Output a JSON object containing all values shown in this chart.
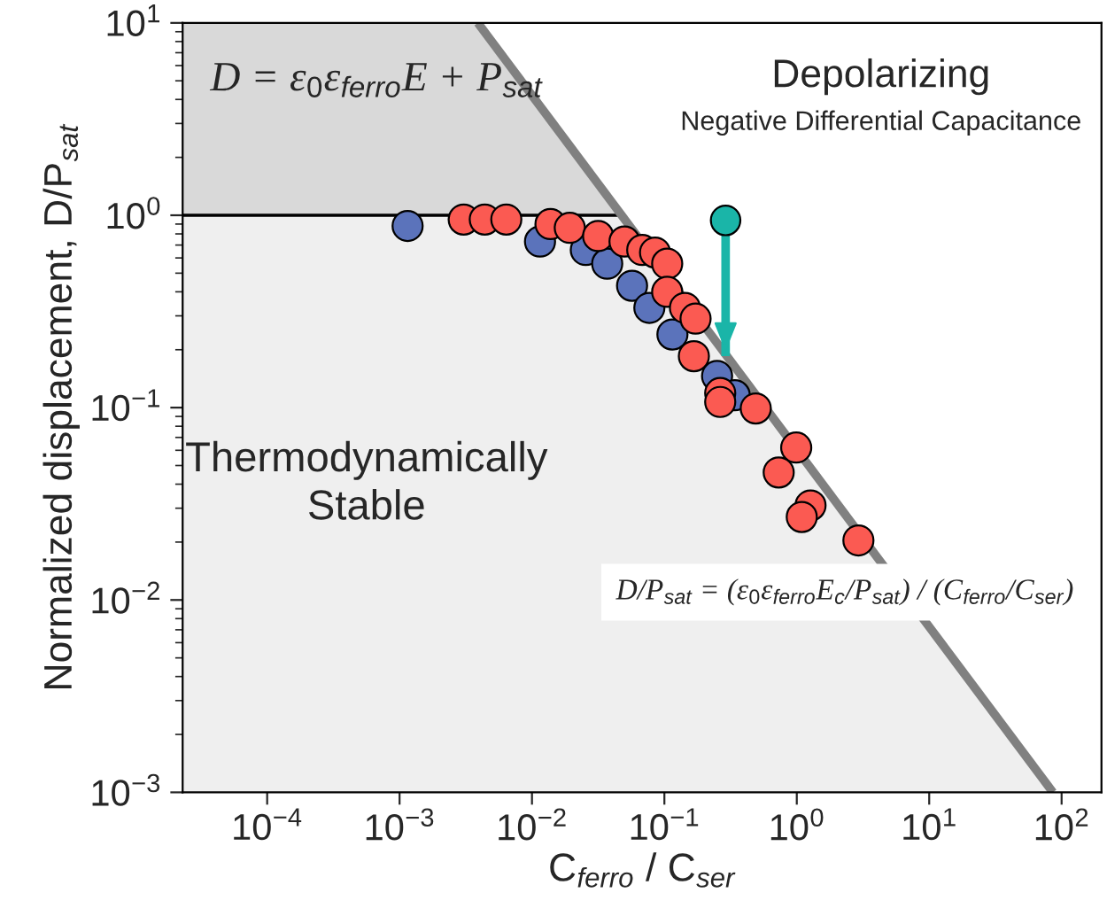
{
  "chart_data": {
    "type": "scatter",
    "xlabel": "C$_{ferro}$ / C$_{ser}$",
    "ylabel": "Normalized displacement, D/P$_{sat}$",
    "log": "xy",
    "xlim": [
      2.3e-05,
      200
    ],
    "ylim": [
      0.001,
      10
    ],
    "xticks": [
      {
        "value": 0.0001,
        "label": "10$^{−4}$"
      },
      {
        "value": 0.001,
        "label": "10$^{−3}$"
      },
      {
        "value": 0.01,
        "label": "10$^{−2}$"
      },
      {
        "value": 0.1,
        "label": "10$^{−1}$"
      },
      {
        "value": 1,
        "label": "10$^{0}$"
      },
      {
        "value": 10,
        "label": "10$^{1}$"
      },
      {
        "value": 100,
        "label": "10$^{2}$"
      }
    ],
    "yticks": [
      {
        "value": 0.001,
        "label": "10$^{−3}$"
      },
      {
        "value": 0.01,
        "label": "10$^{−2}$"
      },
      {
        "value": 0.1,
        "label": "10$^{−1}$"
      },
      {
        "value": 1,
        "label": "10$^{0}$"
      },
      {
        "value": 10,
        "label": "10$^{1}$"
      }
    ],
    "grid": false,
    "legend": false,
    "marker": "circle",
    "series": [
      {
        "type": "line",
        "marker": "none",
        "color": "#808080",
        "x": [
          0.0039,
          86
        ],
        "values": [
          10,
          0.001
        ]
      },
      {
        "color": "#5b73bb",
        "x": [
          0.00115,
          0.0115,
          0.0255,
          0.037,
          0.057,
          0.077,
          0.115,
          0.25,
          0.34
        ],
        "values": [
          0.88,
          0.73,
          0.66,
          0.56,
          0.43,
          0.33,
          0.24,
          0.146,
          0.116
        ]
      },
      {
        "color": "#fb5a52",
        "x": [
          0.00305,
          0.0044,
          0.0064,
          0.0138,
          0.0193,
          0.0316,
          0.05,
          0.068,
          0.085,
          0.105,
          0.105,
          0.143,
          0.172,
          0.167,
          0.264,
          0.264,
          0.49,
          0.99,
          0.73,
          1.27,
          1.09,
          2.92
        ],
        "values": [
          0.95,
          0.95,
          0.95,
          0.9,
          0.86,
          0.78,
          0.73,
          0.66,
          0.64,
          0.56,
          0.4,
          0.33,
          0.29,
          0.185,
          0.119,
          0.107,
          0.099,
          0.062,
          0.046,
          0.031,
          0.027,
          0.0204
        ]
      },
      {
        "type": "line",
        "marker": "circle",
        "color": "#1ab5a8",
        "x": [
          0.29,
          0.29
        ],
        "values": [
          0.94,
          0.185
        ]
      }
    ],
    "bands": [
      {
        "axis": "y",
        "from": 1,
        "to": 10,
        "color": "#d9d9d9"
      },
      {
        "axis": "y",
        "from": 0.001,
        "to": 1,
        "color": "#efefef"
      }
    ],
    "ref_lines": [
      {
        "axis": "y",
        "value": 1,
        "color": "#000000"
      }
    ],
    "annotations": [
      "D = ε$_{0}$ε$_{ferro}$E + P$_{sat}$",
      "Depolarizing",
      "Negative Differential Capacitance",
      "Thermodynamically\nStable",
      "D/P$_{sat}$ = (ε$_{0}$ε$_{ferro}$E$_{c}$/P$_{sat}$) / (C$_{ferro}$/C$_{ser}$)"
    ]
  }
}
